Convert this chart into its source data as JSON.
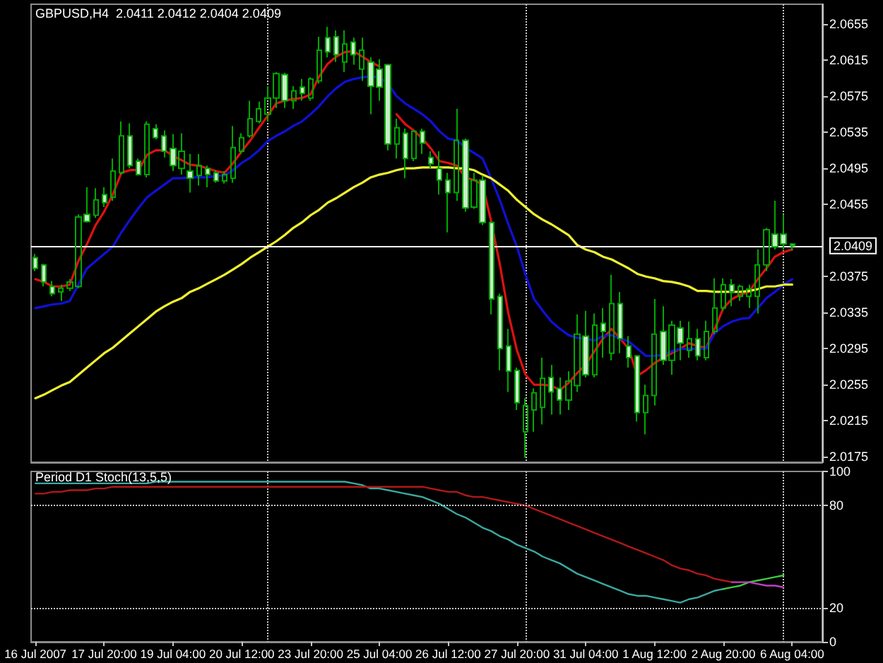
{
  "chart_data": [
    {
      "type": "candlestick",
      "title": "GBPUSD,H4  2.0411 2.0412 2.0404 2.0409",
      "categories": [
        null,
        null,
        null,
        null,
        null,
        null,
        null,
        null,
        null,
        null,
        null,
        null,
        null,
        null,
        null,
        null,
        null,
        null,
        null,
        null,
        null,
        null,
        null,
        null,
        null,
        null,
        null,
        null,
        null,
        null,
        null,
        null,
        null,
        null,
        null,
        null,
        null,
        null,
        null,
        null,
        null,
        null,
        null,
        null,
        null,
        null,
        null,
        null,
        null,
        null,
        null,
        null,
        null,
        null,
        null,
        null,
        null,
        null,
        null,
        null,
        null,
        null,
        null,
        null,
        null,
        null,
        null,
        null,
        null,
        null,
        null,
        null,
        null,
        null,
        null,
        null,
        null,
        null,
        null,
        null,
        null,
        null,
        null,
        null,
        null,
        null,
        null,
        null,
        null
      ],
      "series": [
        {
          "type": "candlestick",
          "color": "#00a800",
          "ohlc": [
            [
              2.0396,
              2.04,
              2.0381,
              2.0384
            ],
            [
              2.0388,
              2.0389,
              2.0364,
              2.0369
            ],
            [
              2.0364,
              2.037,
              2.0353,
              2.0356
            ],
            [
              2.0358,
              2.0366,
              2.0348,
              2.0362
            ],
            [
              2.0362,
              2.0372,
              2.0359,
              2.0369
            ],
            [
              2.0364,
              2.0444,
              2.0362,
              2.0441
            ],
            [
              2.0444,
              2.0474,
              2.0435,
              2.0436
            ],
            [
              2.0443,
              2.0473,
              2.044,
              2.046
            ],
            [
              2.0466,
              2.0474,
              2.0452,
              2.0457
            ],
            [
              2.0463,
              2.0506,
              2.0459,
              2.0492
            ],
            [
              2.049,
              2.0547,
              2.0488,
              2.0531
            ],
            [
              2.0531,
              2.0545,
              2.0495,
              2.0498
            ],
            [
              2.0503,
              2.0506,
              2.0487,
              2.0488
            ],
            [
              2.0488,
              2.0547,
              2.0485,
              2.0544
            ],
            [
              2.0539,
              2.0544,
              2.0527,
              2.0529
            ],
            [
              2.0531,
              2.0537,
              2.0507,
              2.0514
            ],
            [
              2.0517,
              2.0533,
              2.0492,
              2.0498
            ],
            [
              2.0495,
              2.0534,
              2.0488,
              2.0514
            ],
            [
              2.0492,
              2.0511,
              2.0468,
              2.0484
            ],
            [
              2.0487,
              2.0511,
              2.0476,
              2.0498
            ],
            [
              2.0495,
              2.0498,
              2.0474,
              2.0488
            ],
            [
              2.049,
              2.0493,
              2.0479,
              2.0481
            ],
            [
              2.0481,
              2.0492,
              2.0478,
              2.0488
            ],
            [
              2.0484,
              2.0542,
              2.0479,
              2.0518
            ],
            [
              2.0514,
              2.0534,
              2.0511,
              2.0529
            ],
            [
              2.0531,
              2.057,
              2.0529,
              2.055
            ],
            [
              2.0547,
              2.0569,
              2.0545,
              2.0561
            ],
            [
              2.0555,
              2.0586,
              2.0547,
              2.0573
            ],
            [
              2.0573,
              2.0602,
              2.0562,
              2.06
            ],
            [
              2.0599,
              2.0601,
              2.0562,
              2.057
            ],
            [
              2.057,
              2.0586,
              2.0561,
              2.0581
            ],
            [
              2.0585,
              2.0594,
              2.057,
              2.0578
            ],
            [
              2.0573,
              2.0596,
              2.057,
              2.0594
            ],
            [
              2.0592,
              2.0641,
              2.0589,
              2.0626
            ],
            [
              2.064,
              2.0652,
              2.0618,
              2.0624
            ],
            [
              2.0641,
              2.0648,
              2.0613,
              2.0621
            ],
            [
              2.0613,
              2.0648,
              2.0602,
              2.0633
            ],
            [
              2.0635,
              2.064,
              2.061,
              2.0621
            ],
            [
              2.0605,
              2.064,
              2.0592,
              2.0626
            ],
            [
              2.0613,
              2.0618,
              2.0555,
              2.0586
            ],
            [
              2.0605,
              2.0616,
              2.057,
              2.0585
            ],
            [
              2.061,
              2.0611,
              2.0515,
              2.0522
            ],
            [
              2.0522,
              2.055,
              2.0506,
              2.054
            ],
            [
              2.0534,
              2.0539,
              2.0484,
              2.0506
            ],
            [
              2.0506,
              2.0537,
              2.0503,
              2.0536
            ],
            [
              2.0536,
              2.0539,
              2.0511,
              2.0523
            ],
            [
              2.0507,
              2.0514,
              2.0495,
              2.05
            ],
            [
              2.0495,
              2.0514,
              2.0466,
              2.0482
            ],
            [
              2.0482,
              2.049,
              2.0424,
              2.0468
            ],
            [
              2.0468,
              2.0561,
              2.0459,
              2.0526
            ],
            [
              2.0526,
              2.0528,
              2.0447,
              2.0451
            ],
            [
              2.0452,
              2.049,
              2.045,
              2.0482
            ],
            [
              2.0482,
              2.0487,
              2.0432,
              2.0435
            ],
            [
              2.0435,
              2.0436,
              2.0333,
              2.035
            ],
            [
              2.0353,
              2.0356,
              2.0271,
              2.0295
            ],
            [
              2.0298,
              2.0317,
              2.0247,
              2.027
            ],
            [
              2.0271,
              2.0274,
              2.0227,
              2.0235
            ],
            [
              2.0203,
              2.024,
              2.0174,
              2.0232
            ],
            [
              2.0227,
              2.0251,
              2.0203,
              2.0246
            ],
            [
              2.023,
              2.0285,
              2.0211,
              2.0262
            ],
            [
              2.0263,
              2.0277,
              2.0222,
              2.0247
            ],
            [
              2.0251,
              2.0263,
              2.0222,
              2.0238
            ],
            [
              2.0238,
              2.027,
              2.0227,
              2.0259
            ],
            [
              2.0254,
              2.0333,
              2.0247,
              2.0311
            ],
            [
              2.0309,
              2.0337,
              2.0263,
              2.0266
            ],
            [
              2.0266,
              2.0334,
              2.0263,
              2.0321
            ],
            [
              2.0323,
              2.034,
              2.0285,
              2.0314
            ],
            [
              2.029,
              2.0377,
              2.0282,
              2.0345
            ],
            [
              2.0345,
              2.0358,
              2.029,
              2.0306
            ],
            [
              2.0298,
              2.0309,
              2.0274,
              2.0285
            ],
            [
              2.0287,
              2.0288,
              2.0214,
              2.0224
            ],
            [
              2.0224,
              2.0255,
              2.02,
              2.0243
            ],
            [
              2.0243,
              2.035,
              2.0232,
              2.0311
            ],
            [
              2.0314,
              2.0342,
              2.0277,
              2.0282
            ],
            [
              2.0282,
              2.0326,
              2.0266,
              2.0321
            ],
            [
              2.0318,
              2.0326,
              2.0282,
              2.0301
            ],
            [
              2.0293,
              2.0325,
              2.0285,
              2.0306
            ],
            [
              2.0306,
              2.0317,
              2.0282,
              2.0287
            ],
            [
              2.0285,
              2.0326,
              2.0282,
              2.0314
            ],
            [
              2.0314,
              2.0373,
              2.0311,
              2.034
            ],
            [
              2.034,
              2.0373,
              2.0337,
              2.0366
            ],
            [
              2.0366,
              2.0372,
              2.0342,
              2.0358
            ],
            [
              2.0353,
              2.0366,
              2.0348,
              2.0364
            ],
            [
              2.0353,
              2.0366,
              2.034,
              2.0361
            ],
            [
              2.0353,
              2.0405,
              2.0334,
              2.0388
            ],
            [
              2.0388,
              2.0429,
              2.0381,
              2.0427
            ],
            [
              2.0422,
              2.0459,
              2.0405,
              2.0408
            ],
            [
              2.0422,
              2.0444,
              2.0405,
              2.0411
            ],
            [
              2.0411,
              2.0412,
              2.0404,
              2.0409
            ]
          ]
        },
        {
          "type": "line",
          "color": "#e01010",
          "values": [
            2.0372,
            2.0369,
            2.0364,
            2.0364,
            2.0366,
            2.0392,
            2.0411,
            2.0432,
            2.0447,
            2.0466,
            2.049,
            2.0493,
            2.0493,
            2.051,
            2.0515,
            2.0515,
            2.0509,
            2.0504,
            2.0499,
            2.0498,
            2.0495,
            2.0492,
            2.049,
            2.0501,
            2.0514,
            2.0526,
            2.054,
            2.0553,
            2.0567,
            2.057,
            2.0572,
            2.0573,
            2.0577,
            2.0597,
            2.0611,
            2.0619,
            2.0624,
            2.0625,
            2.0619,
            2.0613,
            2.0608,
            null,
            2.0555,
            2.0544,
            2.0537,
            2.0528,
            2.0517,
            2.0503,
            2.0501,
            2.0498,
            2.0485,
            2.0482,
            2.0477,
            2.0436,
            2.0389,
            2.0334,
            2.0293,
            2.0266,
            2.0255,
            2.0255,
            2.0254,
            2.0249,
            2.0257,
            2.0268,
            2.0277,
            2.0292,
            2.0306,
            2.0317,
            2.0306,
            2.0295,
            2.0265,
            2.0271,
            2.0279,
            2.0285,
            2.029,
            2.0295,
            2.0301,
            2.0298,
            2.0296,
            2.0317,
            2.034,
            2.035,
            2.0355,
            2.0358,
            2.0372,
            2.0384,
            2.0397,
            2.0402,
            2.0405
          ]
        },
        {
          "type": "line",
          "color": "#1010d8",
          "values": [
            2.034,
            2.0342,
            2.0344,
            2.0345,
            2.0348,
            2.0366,
            2.0384,
            2.0392,
            2.04,
            2.0408,
            2.0424,
            2.0438,
            2.0451,
            2.0463,
            2.047,
            2.0477,
            2.0484,
            2.0484,
            2.0485,
            2.0485,
            2.0485,
            2.0487,
            2.0487,
            2.0493,
            2.0501,
            2.0507,
            2.0515,
            2.0525,
            2.0531,
            2.0536,
            2.0542,
            2.0547,
            2.0555,
            2.0564,
            2.0575,
            2.0584,
            2.0591,
            2.0594,
            2.0596,
            2.0597,
            2.0596,
            2.0589,
            2.0575,
            2.0567,
            2.0561,
            2.0555,
            2.0547,
            2.0536,
            2.0528,
            2.0526,
            2.0518,
            2.0512,
            2.0506,
            2.0484,
            2.046,
            2.0433,
            2.0408,
            2.0377,
            2.035,
            2.0337,
            2.0325,
            2.0317,
            2.031,
            2.0307,
            2.0306,
            2.0304,
            2.0309,
            2.031,
            2.0306,
            2.0303,
            2.0295,
            2.0287,
            2.0287,
            2.0288,
            2.0292,
            2.0295,
            2.0295,
            2.0295,
            2.0295,
            2.0312,
            2.032,
            2.0325,
            2.0328,
            2.0329,
            2.034,
            2.0351,
            2.0358,
            2.0366,
            2.0372
          ]
        },
        {
          "type": "line",
          "color": "#f0f030",
          "values": [
            2.024,
            2.0244,
            2.0249,
            2.0254,
            2.0258,
            2.0266,
            2.0274,
            2.0282,
            2.029,
            2.0296,
            2.0304,
            2.0312,
            2.032,
            2.0328,
            2.0336,
            2.0342,
            2.0347,
            2.0351,
            2.0358,
            2.0362,
            2.0367,
            2.0372,
            2.0377,
            2.0383,
            2.0389,
            2.0396,
            2.0402,
            2.0408,
            2.0414,
            2.0421,
            2.0429,
            2.0435,
            2.0443,
            2.0449,
            2.0457,
            2.0462,
            2.0468,
            2.0474,
            2.0479,
            2.0485,
            2.0488,
            2.049,
            2.0493,
            2.0495,
            2.0495,
            2.0496,
            2.0496,
            2.0496,
            2.0496,
            2.0495,
            2.0495,
            2.0493,
            2.0488,
            2.0484,
            2.0477,
            2.047,
            2.046,
            2.0452,
            2.0444,
            2.0438,
            2.0433,
            2.0427,
            2.0421,
            2.041,
            2.0405,
            2.0402,
            2.0397,
            2.0394,
            2.0389,
            2.0384,
            2.0378,
            2.0375,
            2.0373,
            2.037,
            2.0369,
            2.0367,
            2.0364,
            2.0359,
            2.0359,
            2.0358,
            2.0358,
            2.0358,
            2.0358,
            2.0359,
            2.0361,
            2.0364,
            2.0364,
            2.0366,
            2.0366
          ]
        }
      ],
      "ylim": [
        2.0169,
        2.0677
      ],
      "yticks": [
        2.0175,
        2.0215,
        2.0255,
        2.0295,
        2.0335,
        2.0375,
        2.0455,
        2.0495,
        2.0535,
        2.0575,
        2.0615,
        2.0655
      ],
      "ref_lines": [
        {
          "axis": "y",
          "value": 2.0409,
          "label": "2.0409",
          "color": "#ffffff",
          "line_style": "solid"
        }
      ],
      "grid": "x",
      "tick_labels": "y",
      "marker": "none"
    },
    {
      "type": "line",
      "title": "Period D1 Stoch(13,5,5)",
      "categories": [
        "16 Jul 2007",
        null,
        null,
        null,
        null,
        null,
        null,
        null,
        "17 Jul 20:00",
        null,
        null,
        null,
        null,
        null,
        null,
        null,
        "19 Jul 04:00",
        null,
        null,
        null,
        null,
        null,
        null,
        null,
        "20 Jul 12:00",
        null,
        null,
        null,
        null,
        null,
        null,
        null,
        "23 Jul 20:00",
        null,
        null,
        null,
        null,
        null,
        null,
        null,
        "25 Jul 04:00",
        null,
        null,
        null,
        null,
        null,
        null,
        null,
        "26 Jul 12:00",
        null,
        null,
        null,
        null,
        null,
        null,
        null,
        "27 Jul 20:00",
        null,
        null,
        null,
        null,
        null,
        null,
        null,
        "31 Jul 04:00",
        null,
        null,
        null,
        null,
        null,
        null,
        null,
        "1 Aug 12:00",
        null,
        null,
        null,
        null,
        null,
        null,
        null,
        "2 Aug 20:00",
        null,
        null,
        null,
        null,
        null,
        null,
        null,
        "6 Aug 04:00"
      ],
      "series": [
        {
          "color": "#3ca8a0",
          "values": [
            93,
            93,
            93,
            93,
            93,
            93,
            93,
            93,
            93,
            93,
            93,
            93,
            93,
            93,
            94,
            94,
            94,
            94,
            94,
            94,
            94,
            94,
            94,
            94,
            94,
            94,
            94,
            94,
            94,
            94,
            94,
            94,
            94,
            94,
            94,
            94,
            94,
            93,
            92,
            90,
            90,
            89,
            88,
            87,
            86,
            85,
            83,
            81,
            78,
            75,
            73,
            70,
            67,
            65,
            62,
            60,
            57,
            55,
            53,
            50,
            48,
            46,
            43,
            40,
            38,
            36,
            34,
            32,
            30,
            28,
            27,
            27,
            26,
            25,
            24,
            23,
            25,
            26,
            28,
            30,
            31,
            null,
            null,
            null,
            null,
            null,
            null,
            null,
            null
          ]
        },
        {
          "color": "#40c840",
          "values": [
            null,
            null,
            null,
            null,
            null,
            null,
            null,
            null,
            null,
            null,
            null,
            null,
            null,
            null,
            null,
            null,
            null,
            null,
            null,
            null,
            null,
            null,
            null,
            null,
            null,
            null,
            null,
            null,
            null,
            null,
            null,
            null,
            null,
            null,
            null,
            null,
            null,
            null,
            null,
            null,
            null,
            null,
            null,
            null,
            null,
            null,
            null,
            null,
            null,
            null,
            null,
            null,
            null,
            null,
            null,
            null,
            null,
            null,
            null,
            null,
            null,
            null,
            null,
            null,
            null,
            null,
            null,
            null,
            null,
            null,
            null,
            null,
            null,
            null,
            null,
            null,
            null,
            null,
            null,
            null,
            31,
            32,
            33,
            35,
            36,
            37,
            38,
            39,
            null
          ]
        },
        {
          "color": "#b01818",
          "values": [
            87,
            87,
            88,
            88,
            89,
            89,
            89,
            90,
            90,
            91,
            91,
            91,
            91,
            91,
            91,
            91,
            91,
            91,
            91,
            91,
            91,
            91,
            91,
            91,
            91,
            91,
            91,
            91,
            91,
            91,
            91,
            91,
            91,
            91,
            91,
            91,
            91,
            91,
            91,
            91,
            91,
            91,
            91,
            91,
            91,
            91,
            90,
            89,
            88,
            88,
            86,
            85,
            85,
            84,
            83,
            82,
            81,
            80,
            78,
            76,
            74,
            72,
            70,
            68,
            66,
            64,
            62,
            60,
            58,
            56,
            54,
            52,
            50,
            48,
            45,
            43,
            42,
            40,
            39,
            37,
            36,
            35,
            null,
            null,
            null,
            null,
            null,
            null,
            null
          ]
        },
        {
          "color": "#c040c0",
          "values": [
            null,
            null,
            null,
            null,
            null,
            null,
            null,
            null,
            null,
            null,
            null,
            null,
            null,
            null,
            null,
            null,
            null,
            null,
            null,
            null,
            null,
            null,
            null,
            null,
            null,
            null,
            null,
            null,
            null,
            null,
            null,
            null,
            null,
            null,
            null,
            null,
            null,
            null,
            null,
            null,
            null,
            null,
            null,
            null,
            null,
            null,
            null,
            null,
            null,
            null,
            null,
            null,
            null,
            null,
            null,
            null,
            null,
            null,
            null,
            null,
            null,
            null,
            null,
            null,
            null,
            null,
            null,
            null,
            null,
            null,
            null,
            null,
            null,
            null,
            null,
            null,
            null,
            null,
            null,
            null,
            null,
            35,
            35,
            35,
            34,
            33,
            33,
            32,
            null
          ]
        }
      ],
      "ylim": [
        0,
        100
      ],
      "yticks": [
        0,
        20,
        80,
        100
      ],
      "ref_lines": [
        {
          "axis": "y",
          "value": 80,
          "color": "#c8c8c8",
          "line_style": "dotted"
        },
        {
          "axis": "y",
          "value": 20,
          "color": "#c8c8c8",
          "line_style": "dotted"
        }
      ],
      "grid": "x",
      "marker": "none"
    }
  ]
}
